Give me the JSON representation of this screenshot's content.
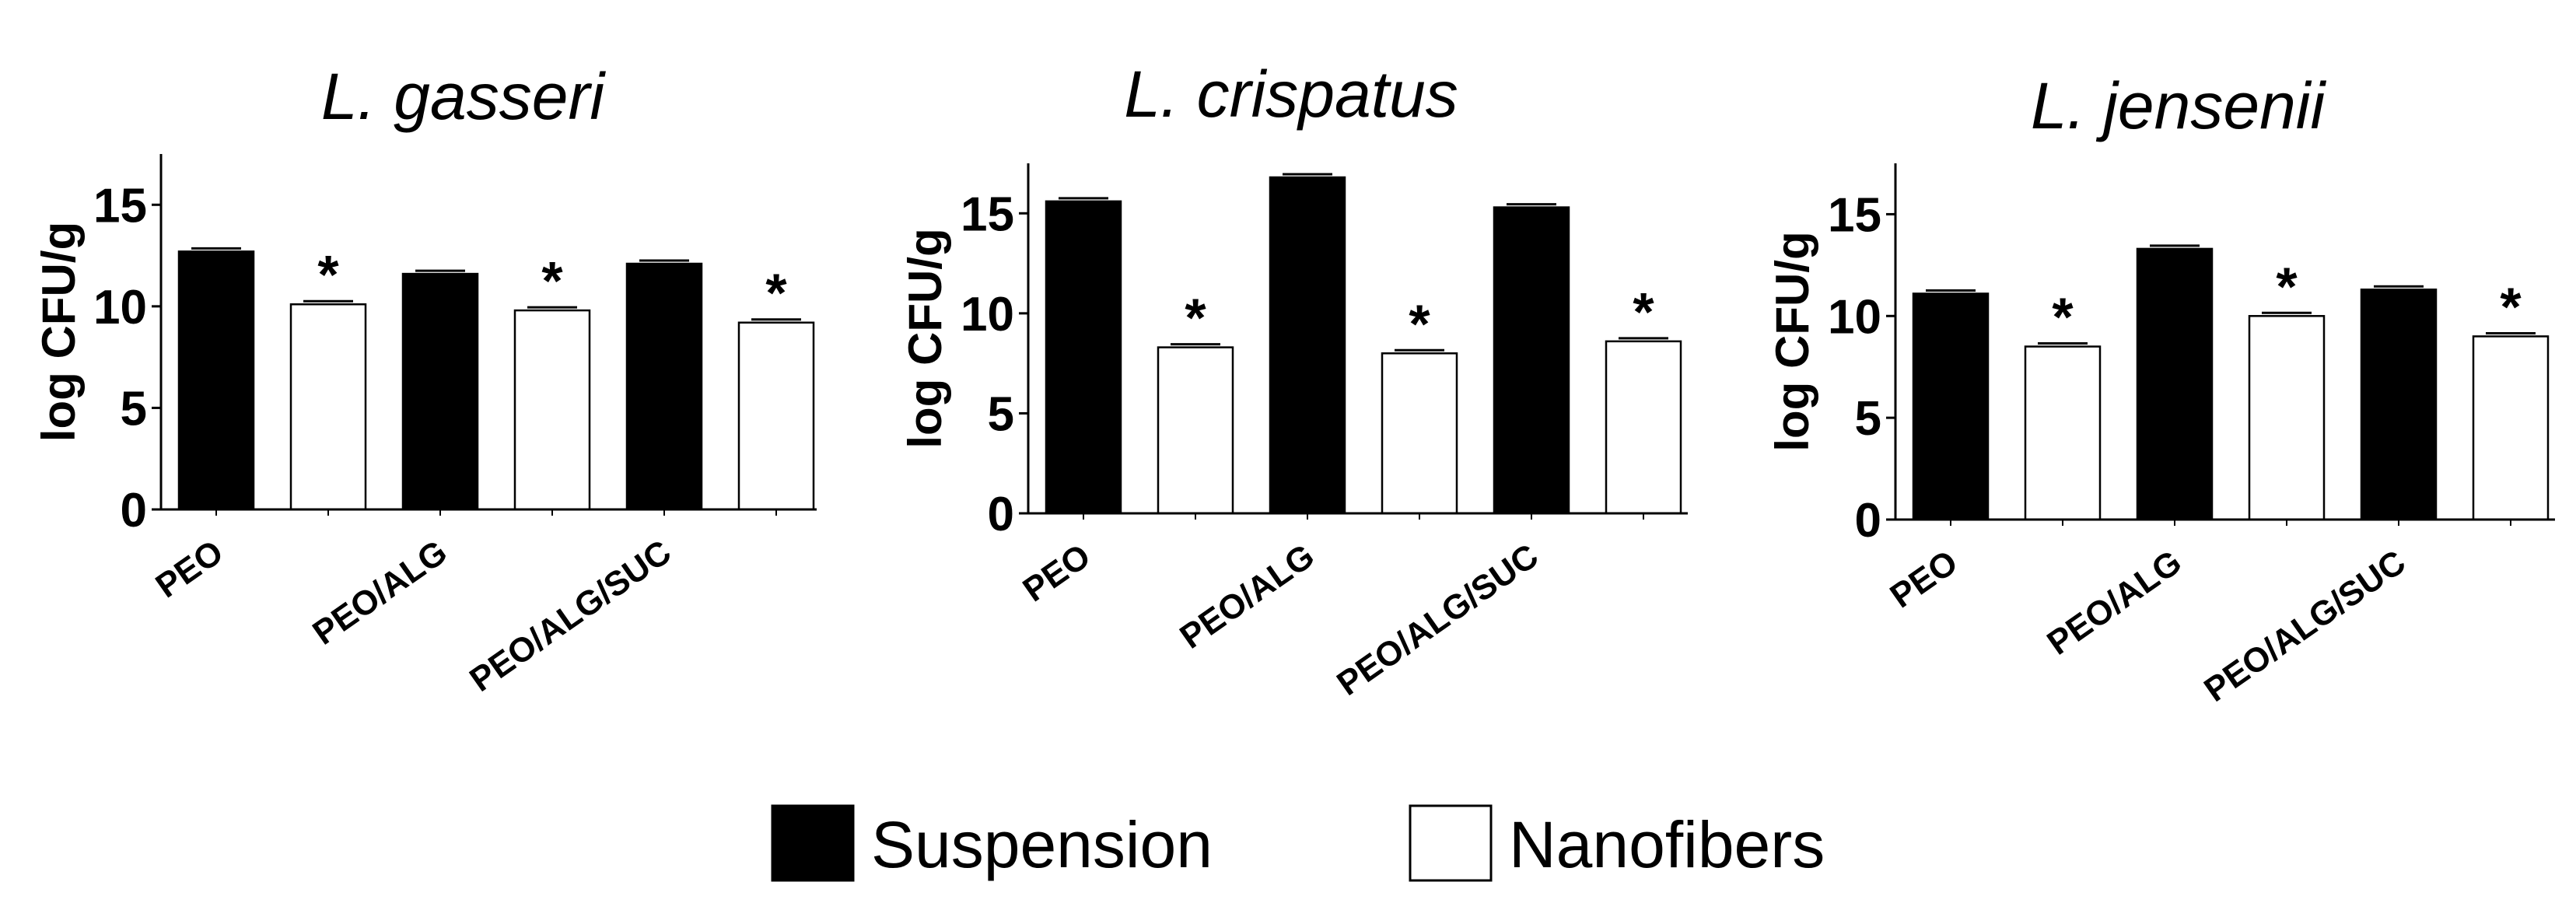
{
  "chart_data": [
    {
      "type": "bar",
      "title": "L. gasseri",
      "ylabel": "log CFU/g",
      "categories": [
        "PEO",
        "PEO/ALG",
        "PEO/ALG/SUC"
      ],
      "series": [
        {
          "name": "Suspension",
          "values": [
            12.7,
            11.6,
            12.1
          ]
        },
        {
          "name": "Nanofibers",
          "values": [
            10.1,
            9.8,
            9.2
          ]
        }
      ],
      "significance": [
        "",
        "*",
        "",
        "*",
        "",
        "*"
      ],
      "yticks": [
        0,
        5,
        10,
        15
      ],
      "ylim": [
        0,
        17.5
      ]
    },
    {
      "type": "bar",
      "title": "L. crispatus",
      "ylabel": "log CFU/g",
      "categories": [
        "PEO",
        "PEO/ALG",
        "PEO/ALG/SUC"
      ],
      "series": [
        {
          "name": "Suspension",
          "values": [
            15.6,
            16.8,
            15.3
          ]
        },
        {
          "name": "Nanofibers",
          "values": [
            8.3,
            8.0,
            8.6
          ]
        }
      ],
      "significance": [
        "",
        "*",
        "",
        "*",
        "",
        "*"
      ],
      "yticks": [
        0,
        5,
        10,
        15
      ],
      "ylim": [
        0,
        17.5
      ]
    },
    {
      "type": "bar",
      "title": "L. jensenii",
      "ylabel": "log CFU/g",
      "categories": [
        "PEO",
        "PEO/ALG",
        "PEO/ALG/SUC"
      ],
      "series": [
        {
          "name": "Suspension",
          "values": [
            11.1,
            13.3,
            11.3
          ]
        },
        {
          "name": "Nanofibers",
          "values": [
            8.5,
            10.0,
            9.0
          ]
        }
      ],
      "significance": [
        "",
        "*",
        "",
        "*",
        "",
        "*"
      ],
      "yticks": [
        0,
        5,
        10,
        15
      ],
      "ylim": [
        0,
        17.5
      ]
    }
  ],
  "legend": [
    {
      "label": "Suspension",
      "fill": "#000000"
    },
    {
      "label": "Nanofibers",
      "fill": "#ffffff"
    }
  ]
}
